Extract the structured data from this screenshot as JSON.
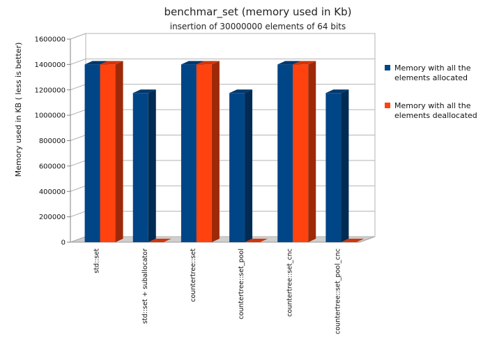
{
  "chart_data": {
    "type": "bar",
    "title": "benchmar_set (memory used in Kb)",
    "subtitle": "insertion of 30000000 elements of 64 bits",
    "ylabel": "Memory used in KB ( less is better)",
    "xlabel": "",
    "ylim": [
      0,
      1600000
    ],
    "yticks": [
      "0",
      "200000",
      "400000",
      "600000",
      "800000",
      "1000000",
      "1200000",
      "1400000",
      "1600000"
    ],
    "categories": [
      "std::set",
      "std::set + suballocator",
      "countertree::set",
      "countertree::set_pool",
      "countertree::set_cnc",
      "countertree::set_pool_cnc"
    ],
    "series": [
      {
        "name": "Memory with all the elements allocated",
        "legend_lines": [
          "Memory with all the",
          "elements allocated"
        ],
        "color": "#004586",
        "values": [
          1400000,
          1175000,
          1400000,
          1175000,
          1400000,
          1175000
        ]
      },
      {
        "name": "Memory with all the elements deallocated",
        "legend_lines": [
          "Memory with all the",
          "elements deallocated"
        ],
        "color": "#ff420e",
        "values": [
          1400000,
          0,
          1400000,
          0,
          1400000,
          0
        ]
      }
    ],
    "grid": true,
    "legend_position": "right",
    "style": "3d"
  }
}
